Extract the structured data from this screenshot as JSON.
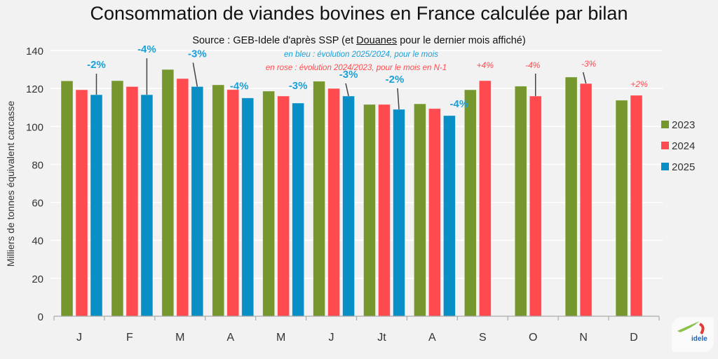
{
  "title": "Consommation de viandes bovines en France calculée par bilan",
  "subtitle": {
    "prefix": "Source : GEB-Idele d'après SSP (et ",
    "underlined": "Douanes",
    "suffix": " pour le dernier mois affiché)"
  },
  "notes": {
    "blue": "en bleu : évolution 2025/2024, pour le mois",
    "pink": "en rose : évolution 2024/2023, pour le mois en N-1"
  },
  "logo_label": "idele",
  "chart_data": {
    "type": "bar",
    "title": "Consommation de viandes bovines en France calculée par bilan",
    "xlabel": "",
    "ylabel": "Milliers de tonnes équivalent carcasse",
    "ylim": [
      0,
      140
    ],
    "yticks": [
      0,
      20,
      40,
      60,
      80,
      100,
      120,
      140
    ],
    "grid": true,
    "legend_position": "right",
    "categories": [
      "J",
      "F",
      "M",
      "A",
      "M",
      "J",
      "Jt",
      "A",
      "S",
      "O",
      "N",
      "D"
    ],
    "series": [
      {
        "name": "2023",
        "color": "#76962e",
        "values": [
          124.0,
          124.1,
          130.0,
          121.9,
          118.6,
          123.8,
          111.6,
          111.9,
          119.3,
          121.2,
          126.0,
          113.8
        ]
      },
      {
        "name": "2024",
        "color": "#ff4b4f",
        "values": [
          119.3,
          121.0,
          125.2,
          119.4,
          116.0,
          120.0,
          111.6,
          109.4,
          124.1,
          116.0,
          122.6,
          116.4
        ]
      },
      {
        "name": "2025",
        "color": "#098fc6",
        "values": [
          116.7,
          116.7,
          121.0,
          115.0,
          112.3,
          116.0,
          109.0,
          105.7,
          null,
          null,
          null,
          null
        ]
      }
    ],
    "annotations": [
      {
        "category_index": 0,
        "series": "2025",
        "text": "-2%",
        "style": "blue"
      },
      {
        "category_index": 1,
        "series": "2025",
        "text": "-4%",
        "style": "blue"
      },
      {
        "category_index": 2,
        "series": "2025",
        "text": "-3%",
        "style": "blue"
      },
      {
        "category_index": 3,
        "series": "2025",
        "text": "-4%",
        "style": "blue"
      },
      {
        "category_index": 4,
        "series": "2025",
        "text": "-3%",
        "style": "blue"
      },
      {
        "category_index": 5,
        "series": "2025",
        "text": "-3%",
        "style": "blue"
      },
      {
        "category_index": 6,
        "series": "2025",
        "text": "-2%",
        "style": "blue"
      },
      {
        "category_index": 7,
        "series": "2025",
        "text": "-4%",
        "style": "blue"
      },
      {
        "category_index": 8,
        "series": "2024",
        "text": "+4%",
        "style": "pink"
      },
      {
        "category_index": 9,
        "series": "2024",
        "text": "-4%",
        "style": "pink"
      },
      {
        "category_index": 10,
        "series": "2024",
        "text": "-3%",
        "style": "pink"
      },
      {
        "category_index": 11,
        "series": "2024",
        "text": "+2%",
        "style": "pink"
      }
    ]
  }
}
